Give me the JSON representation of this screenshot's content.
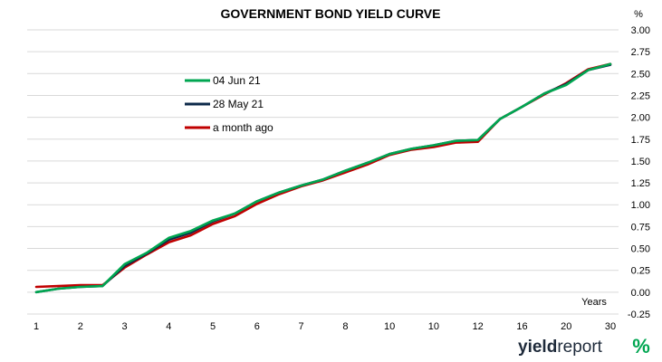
{
  "chart_data": {
    "type": "line",
    "title": "GOVERNMENT BOND YIELD CURVE",
    "y_unit": "%",
    "x_unit_label": "Years",
    "xlabel": "",
    "ylabel": "",
    "x_tick_labels": [
      "1",
      "2",
      "3",
      "4",
      "5",
      "6",
      "7",
      "8",
      "10",
      "10",
      "12",
      "16",
      "20",
      "30"
    ],
    "y_ticks": [
      "3.00",
      "2.75",
      "2.50",
      "2.25",
      "2.00",
      "1.75",
      "1.50",
      "1.25",
      "1.00",
      "0.75",
      "0.50",
      "0.25",
      "0.00",
      "-0.25"
    ],
    "ylim": [
      -0.25,
      3.0
    ],
    "grid": "horizontal",
    "legend_position": "top-left",
    "series": [
      {
        "name": "04 Jun 21",
        "color": "#00a651",
        "values": [
          0.0,
          0.04,
          0.06,
          0.07,
          0.32,
          0.45,
          0.62,
          0.7,
          0.82,
          0.9,
          1.04,
          1.14,
          1.22,
          1.29,
          1.39,
          1.48,
          1.58,
          1.64,
          1.68,
          1.73,
          1.74,
          1.98,
          2.12,
          2.27,
          2.37,
          2.54,
          2.61
        ]
      },
      {
        "name": "28 May 21",
        "color": "#0d2a4a",
        "values": [
          0.0,
          0.04,
          0.06,
          0.07,
          0.3,
          0.44,
          0.6,
          0.68,
          0.81,
          0.9,
          1.04,
          1.14,
          1.22,
          1.29,
          1.39,
          1.48,
          1.58,
          1.64,
          1.68,
          1.73,
          1.74,
          1.98,
          2.12,
          2.27,
          2.38,
          2.54,
          2.6
        ]
      },
      {
        "name": "a month ago",
        "color": "#c00000",
        "values": [
          0.06,
          0.07,
          0.08,
          0.08,
          0.28,
          0.43,
          0.57,
          0.65,
          0.78,
          0.87,
          1.01,
          1.12,
          1.21,
          1.28,
          1.37,
          1.46,
          1.57,
          1.63,
          1.66,
          1.71,
          1.72,
          1.98,
          2.12,
          2.26,
          2.39,
          2.55,
          2.61
        ]
      }
    ]
  },
  "logo": {
    "text_bold": "yield",
    "text_light": "report",
    "mark": "%"
  }
}
